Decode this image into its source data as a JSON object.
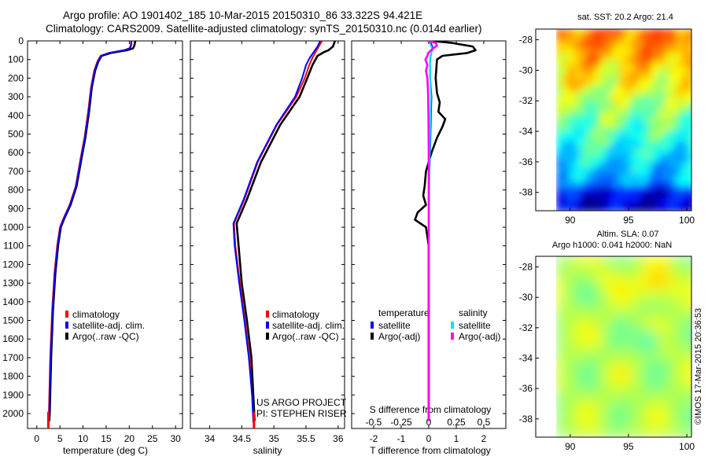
{
  "header": {
    "line1": "Argo profile: AO 1901402_185 10-Mar-2015 20150310_86 33.322S 94.421E",
    "line2": "Climatology: CARS2009. Satellite-adjusted climatology: synTS_20150310.nc (0.014d earlier)"
  },
  "colors": {
    "climatology": "#ff0000",
    "satellite": "#0000ff",
    "argo": "#000000",
    "salinity_satellite": "#00e5e5",
    "salinity_argo": "#ff00ff"
  },
  "chart_data": [
    {
      "type": "line",
      "id": "temperature",
      "xlabel": "temperature (deg C)",
      "xticks": [
        0,
        5,
        10,
        15,
        20,
        25,
        30
      ],
      "xlim": [
        -2,
        31.5
      ],
      "ylim": [
        0,
        2080
      ],
      "yticks": [
        0,
        100,
        200,
        300,
        400,
        500,
        600,
        700,
        800,
        900,
        1000,
        1100,
        1200,
        1300,
        1400,
        1500,
        1600,
        1700,
        1800,
        1900,
        2000
      ],
      "legend": [
        "climatology",
        "satellite-adj. clim.",
        "Argo(..raw -QC)"
      ],
      "series": [
        {
          "name": "Argo(..raw -QC)",
          "points": [
            [
              21.3,
              0
            ],
            [
              21.1,
              25
            ],
            [
              20.8,
              40
            ],
            [
              19.5,
              50
            ],
            [
              16,
              65
            ],
            [
              14,
              80
            ],
            [
              13.3,
              110
            ],
            [
              12.6,
              160
            ],
            [
              11.9,
              250
            ],
            [
              11.3,
              380
            ],
            [
              10.5,
              520
            ],
            [
              9.6,
              640
            ],
            [
              8.6,
              780
            ],
            [
              7.3,
              880
            ],
            [
              6,
              950
            ],
            [
              5.2,
              1000
            ],
            [
              4.6,
              1100
            ],
            [
              4,
              1250
            ],
            [
              3.5,
              1450
            ],
            [
              3.1,
              1700
            ],
            [
              2.8,
              2000
            ],
            [
              2.7,
              2040
            ]
          ]
        },
        {
          "name": "climatology",
          "points": [
            [
              20.4,
              0
            ],
            [
              20.3,
              25
            ],
            [
              20,
              40
            ],
            [
              18.8,
              50
            ],
            [
              15.5,
              65
            ],
            [
              13.8,
              80
            ],
            [
              13.1,
              110
            ],
            [
              12.4,
              160
            ],
            [
              11.7,
              250
            ],
            [
              11.1,
              380
            ],
            [
              10.3,
              520
            ],
            [
              9.4,
              640
            ],
            [
              8.4,
              780
            ],
            [
              7.1,
              880
            ],
            [
              5.8,
              950
            ],
            [
              5,
              1000
            ],
            [
              4.4,
              1100
            ],
            [
              3.8,
              1250
            ],
            [
              3.3,
              1450
            ],
            [
              2.9,
              1700
            ],
            [
              2.6,
              2000
            ],
            [
              2.5,
              2050
            ]
          ]
        },
        {
          "name": "satellite-adj. clim.",
          "points": [
            [
              20.5,
              0
            ],
            [
              20.4,
              25
            ],
            [
              20.1,
              40
            ],
            [
              18.9,
              50
            ],
            [
              15.6,
              65
            ],
            [
              13.9,
              80
            ],
            [
              13.2,
              110
            ],
            [
              12.5,
              160
            ],
            [
              11.8,
              250
            ],
            [
              11.2,
              380
            ],
            [
              10.4,
              520
            ],
            [
              9.5,
              640
            ],
            [
              8.5,
              780
            ],
            [
              7.2,
              880
            ],
            [
              5.9,
              950
            ],
            [
              5.1,
              1000
            ],
            [
              4.5,
              1100
            ],
            [
              3.9,
              1250
            ],
            [
              3.4,
              1450
            ],
            [
              3,
              1700
            ],
            [
              2.7,
              2000
            ],
            [
              2.6,
              2050
            ]
          ]
        }
      ]
    },
    {
      "type": "line",
      "id": "salinity",
      "xlabel": "salinity",
      "xticks": [
        34,
        34.5,
        35,
        35.5,
        36
      ],
      "xlim": [
        33.7,
        36.1
      ],
      "ylim": [
        0,
        2080
      ],
      "legend": [
        "climatology",
        "satellite-adj. clim.",
        "Argo(..raw -QC)"
      ],
      "series": [
        {
          "name": "Argo(..raw -QC)",
          "points": [
            [
              35.95,
              0
            ],
            [
              35.92,
              30
            ],
            [
              35.85,
              50
            ],
            [
              35.78,
              60
            ],
            [
              35.68,
              80
            ],
            [
              35.6,
              130
            ],
            [
              35.52,
              200
            ],
            [
              35.4,
              300
            ],
            [
              35.1,
              450
            ],
            [
              34.8,
              650
            ],
            [
              34.58,
              850
            ],
            [
              34.42,
              980
            ],
            [
              34.45,
              1100
            ],
            [
              34.5,
              1300
            ],
            [
              34.58,
              1500
            ],
            [
              34.65,
              1700
            ],
            [
              34.68,
              1900
            ],
            [
              34.7,
              2040
            ]
          ]
        },
        {
          "name": "climatology",
          "points": [
            [
              35.75,
              0
            ],
            [
              35.7,
              30
            ],
            [
              35.65,
              60
            ],
            [
              35.6,
              90
            ],
            [
              35.55,
              130
            ],
            [
              35.48,
              200
            ],
            [
              35.35,
              300
            ],
            [
              35.05,
              450
            ],
            [
              34.75,
              650
            ],
            [
              34.54,
              850
            ],
            [
              34.38,
              980
            ],
            [
              34.4,
              1100
            ],
            [
              34.47,
              1300
            ],
            [
              34.55,
              1500
            ],
            [
              34.62,
              1700
            ],
            [
              34.66,
              1900
            ],
            [
              34.69,
              2050
            ]
          ]
        },
        {
          "name": "satellite-adj. clim.",
          "points": [
            [
              35.72,
              0
            ],
            [
              35.68,
              30
            ],
            [
              35.62,
              60
            ],
            [
              35.56,
              90
            ],
            [
              35.5,
              130
            ],
            [
              35.44,
              200
            ],
            [
              35.33,
              300
            ],
            [
              35.04,
              450
            ],
            [
              34.74,
              650
            ],
            [
              34.53,
              850
            ],
            [
              34.37,
              980
            ],
            [
              34.39,
              1100
            ],
            [
              34.46,
              1300
            ],
            [
              34.54,
              1500
            ],
            [
              34.61,
              1700
            ],
            [
              34.66,
              1900
            ],
            [
              34.68,
              2050
            ]
          ]
        }
      ],
      "annotations": [
        "US ARGO PROJECT",
        "PI: STEPHEN RISER"
      ]
    },
    {
      "type": "line",
      "id": "difference",
      "xlabel": "T difference from climatology",
      "top_axis_label": "S difference from climatology",
      "xticks": [
        -2,
        -1,
        0,
        1,
        2
      ],
      "xlim": [
        -2.8,
        2.8
      ],
      "top_ticks": [
        -0.5,
        -0.25,
        0,
        0.25,
        0.5
      ],
      "top_tick_labels": [
        "-0.5",
        "-0.25",
        "0",
        "0.25",
        "0.5"
      ],
      "ylim": [
        0,
        2080
      ],
      "legend": {
        "temperature_header": "temperature",
        "salinity_header": "salinity",
        "satellite": "satellite",
        "argo": "Argo(-adj)"
      },
      "series": [
        {
          "name": "T satellite",
          "color": "#0000ff",
          "points": [
            [
              0.05,
              0
            ],
            [
              0.1,
              20
            ],
            [
              0.15,
              40
            ],
            [
              0.1,
              60
            ],
            [
              0.05,
              100
            ],
            [
              0.05,
              200
            ],
            [
              0.1,
              300
            ],
            [
              0.08,
              400
            ],
            [
              0.05,
              600
            ],
            [
              0,
              800
            ],
            [
              0,
              1000
            ],
            [
              0,
              1200
            ],
            [
              0,
              1500
            ],
            [
              0,
              1800
            ],
            [
              0,
              2040
            ]
          ]
        },
        {
          "name": "T Argo(-adj)",
          "color": "#000000",
          "points": [
            [
              0.1,
              0
            ],
            [
              0.8,
              10
            ],
            [
              1.6,
              30
            ],
            [
              1.7,
              50
            ],
            [
              1.4,
              65
            ],
            [
              0.5,
              80
            ],
            [
              0.3,
              100
            ],
            [
              0.25,
              200
            ],
            [
              0.3,
              280
            ],
            [
              0.4,
              330
            ],
            [
              0.35,
              380
            ],
            [
              0.6,
              420
            ],
            [
              0.5,
              460
            ],
            [
              0.3,
              520
            ],
            [
              0.1,
              600
            ],
            [
              -0.1,
              700
            ],
            [
              -0.15,
              780
            ],
            [
              -0.2,
              830
            ],
            [
              -0.1,
              880
            ],
            [
              -0.4,
              920
            ],
            [
              -0.5,
              960
            ],
            [
              -0.1,
              1000
            ],
            [
              0,
              1100
            ],
            [
              0,
              1200
            ],
            [
              0,
              1500
            ],
            [
              0,
              1800
            ],
            [
              0,
              2040
            ]
          ]
        },
        {
          "name": "S satellite",
          "color": "#00e5e5",
          "points": [
            [
              0.03,
              0
            ],
            [
              0.06,
              20
            ],
            [
              0.12,
              40
            ],
            [
              0.1,
              60
            ],
            [
              0.06,
              100
            ],
            [
              0.05,
              200
            ],
            [
              0.08,
              300
            ],
            [
              0.06,
              400
            ],
            [
              0.04,
              600
            ],
            [
              0.02,
              800
            ],
            [
              0.01,
              1000
            ],
            [
              0.01,
              1200
            ],
            [
              0,
              1500
            ],
            [
              0,
              1800
            ],
            [
              0,
              2040
            ]
          ]
        },
        {
          "name": "S Argo(-adj)",
          "color": "#ff00ff",
          "points": [
            [
              -0.05,
              0
            ],
            [
              0.25,
              10
            ],
            [
              0.3,
              25
            ],
            [
              0.12,
              45
            ],
            [
              0.05,
              55
            ],
            [
              -0.02,
              65
            ],
            [
              -0.05,
              80
            ],
            [
              -0.08,
              90
            ],
            [
              -0.12,
              100
            ],
            [
              -0.05,
              130
            ],
            [
              -0.1,
              160
            ],
            [
              -0.05,
              200
            ],
            [
              -0.03,
              260
            ],
            [
              -0.02,
              300
            ],
            [
              -0.01,
              400
            ],
            [
              0,
              600
            ],
            [
              0,
              800
            ],
            [
              0,
              1000
            ],
            [
              0,
              1200
            ],
            [
              0,
              1500
            ],
            [
              0,
              1800
            ],
            [
              0,
              2040
            ]
          ]
        }
      ]
    },
    {
      "type": "heatmap",
      "id": "sst-map",
      "title": "sat. SST: 20.2 Argo: 21.4",
      "xticks": [
        90,
        95,
        100
      ],
      "yticks": [
        -28,
        -30,
        -32,
        -34,
        -36,
        -38
      ],
      "xlim": [
        88.8,
        100.4
      ],
      "ylim": [
        -39.2,
        -27.3
      ]
    },
    {
      "type": "heatmap",
      "id": "sla-map",
      "title_line1": "Altim. SLA: 0.07",
      "title_line2": "Argo h1000: 0.041 h2000: NaN",
      "xticks": [
        90,
        95,
        100
      ],
      "yticks": [
        -28,
        -30,
        -32,
        -34,
        -36,
        -38
      ],
      "xlim": [
        88.8,
        100.4
      ],
      "ylim": [
        -39.2,
        -27.3
      ]
    }
  ],
  "footer": {
    "stamp": "©IMOS 17-Mar-2015 20:36:53"
  }
}
